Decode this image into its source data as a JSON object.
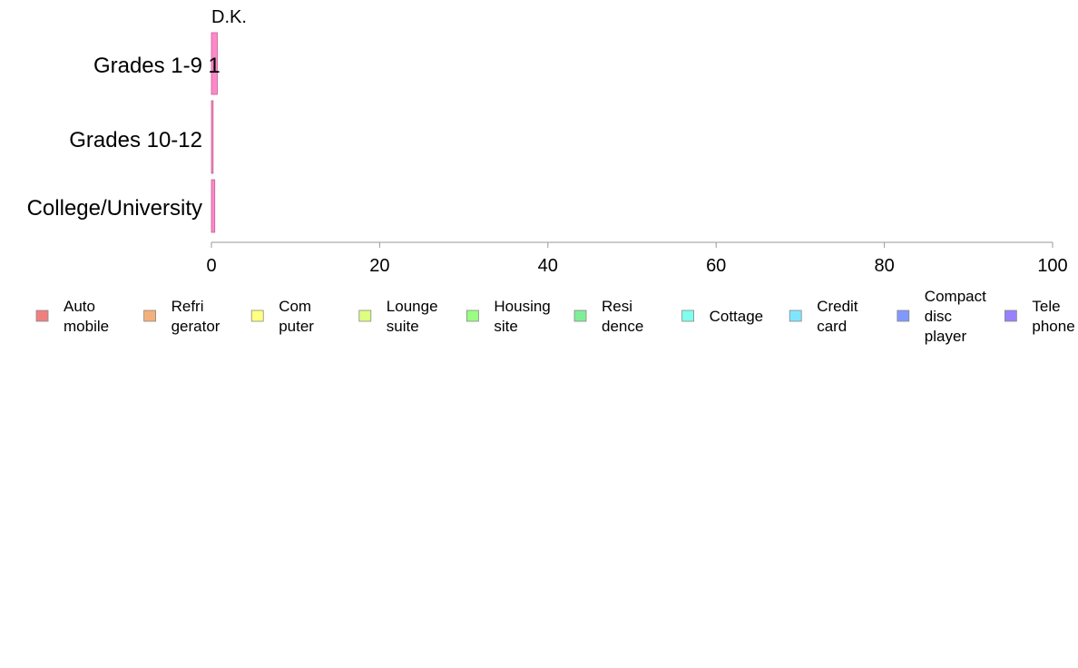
{
  "chart_data": {
    "type": "bar",
    "orientation": "horizontal",
    "stacked": true,
    "title": "D.K.",
    "xlabel": "",
    "ylabel": "",
    "xlim": [
      0,
      100
    ],
    "x_ticks": [
      0,
      20,
      40,
      60,
      80,
      100
    ],
    "grid": false,
    "legend_position": "bottom",
    "categories": [
      "Grades 1-9",
      "Grades 10-12",
      "College/University"
    ],
    "series": [
      {
        "name": "Auto mobile",
        "label_lines": [
          "Auto",
          "mobile"
        ],
        "color": "#f08080",
        "values": [
          0,
          0,
          0
        ]
      },
      {
        "name": "Refri gerator",
        "label_lines": [
          "Refri",
          "gerator"
        ],
        "color": "#f4b07a",
        "values": [
          0,
          0,
          0
        ]
      },
      {
        "name": "Com puter",
        "label_lines": [
          "Com",
          "puter"
        ],
        "color": "#ffff80",
        "values": [
          0,
          0,
          0
        ]
      },
      {
        "name": "Lounge suite",
        "label_lines": [
          "Lounge",
          "suite"
        ],
        "color": "#ddff80",
        "values": [
          0,
          0,
          0
        ]
      },
      {
        "name": "Housing site",
        "label_lines": [
          "Housing",
          "site"
        ],
        "color": "#99ff80",
        "values": [
          0,
          0,
          0
        ]
      },
      {
        "name": "Resi dence",
        "label_lines": [
          "Resi",
          "dence"
        ],
        "color": "#80ee99",
        "values": [
          0,
          0,
          0
        ]
      },
      {
        "name": "Cottage",
        "label_lines": [
          "Cottage"
        ],
        "color": "#80ffee",
        "values": [
          0,
          0,
          0
        ]
      },
      {
        "name": "Credit card",
        "label_lines": [
          "Credit",
          "card"
        ],
        "color": "#80e6ff",
        "values": [
          0,
          0,
          0
        ]
      },
      {
        "name": "Compact disc player",
        "label_lines": [
          "Compact",
          "disc",
          "player"
        ],
        "color": "#8099ff",
        "values": [
          0,
          0,
          0
        ]
      },
      {
        "name": "Tele phone",
        "label_lines": [
          "Tele",
          "phone"
        ],
        "color": "#9980ff",
        "values": [
          0,
          0,
          0
        ]
      },
      {
        "name": "D.K.",
        "label_lines": [],
        "color": "#ff88cc",
        "values": [
          0.7,
          0.2,
          0.4
        ]
      }
    ],
    "data_labels": [
      {
        "category": "Grades 1-9",
        "text": "1"
      }
    ]
  }
}
